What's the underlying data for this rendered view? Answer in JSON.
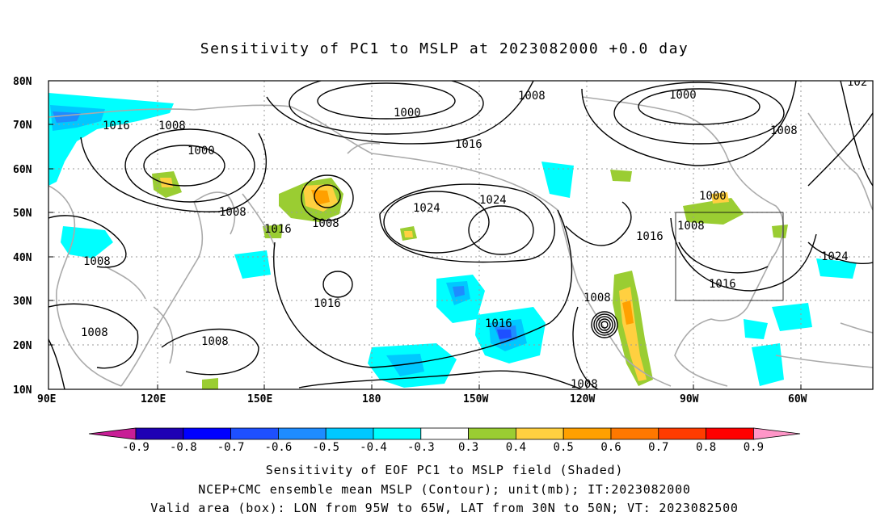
{
  "title": "Sensitivity of PC1 to MSLP at 2023082000 +0.0 day",
  "captions": [
    "Sensitivity of EOF PC1 to MSLP field (Shaded)",
    "NCEP+CMC ensemble mean MSLP (Contour); unit(mb); IT:2023082000",
    "Valid area (box): LON from 95W to 65W, LAT from 30N to 50N; VT: 2023082500"
  ],
  "lat_ticks": [
    "80N",
    "70N",
    "60N",
    "50N",
    "40N",
    "30N",
    "20N",
    "10N"
  ],
  "lon_ticks": [
    "90E",
    "120E",
    "150E",
    "180",
    "150W",
    "120W",
    "90W",
    "60W"
  ],
  "colorbar": {
    "labels": [
      "-0.9",
      "-0.8",
      "-0.7",
      "-0.6",
      "-0.5",
      "-0.4",
      "-0.3",
      "0.3",
      "0.4",
      "0.5",
      "0.6",
      "0.7",
      "0.8",
      "0.9"
    ],
    "colors": [
      "#1e00b4",
      "#0000ff",
      "#1e50ff",
      "#1e8cff",
      "#00c8ff",
      "#00ffff",
      "#ffffff",
      "#9acd32",
      "#ffd040",
      "#ffa000",
      "#ff7800",
      "#ff3c00",
      "#ff0000"
    ],
    "low_end_color": "#c81e96",
    "high_end_color": "#ff96c8"
  },
  "contour_labels": [
    "1000",
    "1000",
    "1000",
    "1000",
    "1008",
    "1008",
    "1008",
    "1008",
    "1008",
    "1008",
    "1008",
    "1008",
    "1008",
    "1008",
    "1016",
    "1016",
    "1016",
    "1016",
    "1016",
    "1016",
    "1016",
    "1024",
    "1024",
    "1024",
    "102"
  ],
  "valid_box": {
    "lon": [
      "95W",
      "65W"
    ],
    "lat": [
      "30N",
      "50N"
    ]
  }
}
